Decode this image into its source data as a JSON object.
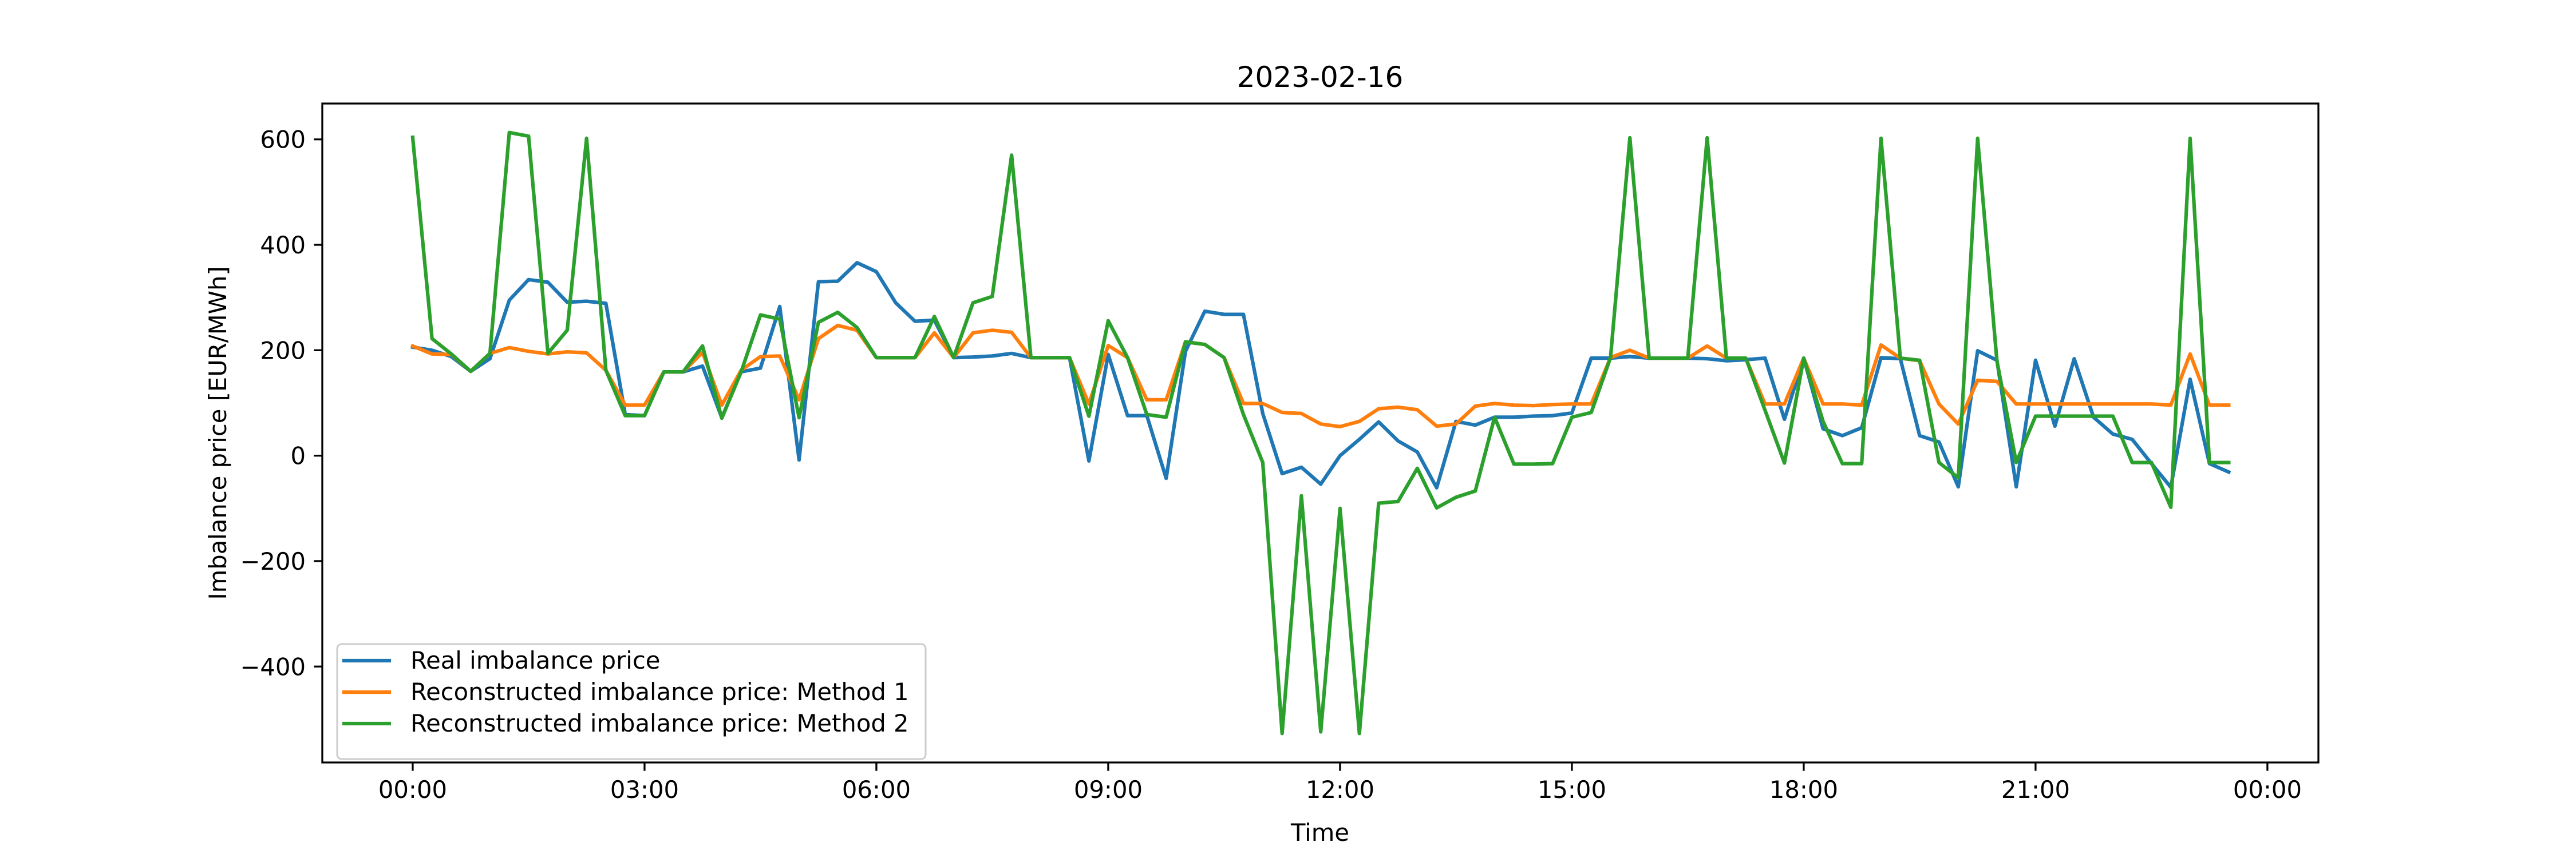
{
  "chart_data": {
    "type": "line",
    "title": "2023-02-16",
    "xlabel": "Time",
    "ylabel": "Imbalance price [EUR/MWh]",
    "x_tick_labels": [
      "00:00",
      "03:00",
      "06:00",
      "09:00",
      "12:00",
      "15:00",
      "18:00",
      "21:00",
      "00:00"
    ],
    "y_ticks": [
      -400,
      -200,
      0,
      200,
      400,
      600
    ],
    "x_resolution_minutes": 15,
    "x_start": "00:00",
    "x_end": "23:30",
    "ylim": [
      -582,
      668
    ],
    "xlim_hours": [
      -1.17,
      24.66
    ],
    "grid": false,
    "legend_position": "lower-left",
    "series": [
      {
        "name": "Real imbalance price",
        "color": "#1f77b4",
        "values": [
          206,
          200,
          188,
          160,
          184,
          295,
          334,
          329,
          291,
          293,
          289,
          78,
          76,
          159,
          159,
          170,
          72,
          159,
          166,
          283,
          -8,
          330,
          331,
          366,
          349,
          290,
          255,
          257,
          186,
          187,
          189,
          194,
          186,
          186,
          186,
          -10,
          192,
          76,
          76,
          -43,
          198,
          274,
          268,
          268,
          80,
          -34,
          -22,
          -54,
          0,
          31,
          64,
          28,
          7,
          -61,
          65,
          58,
          73,
          73,
          75,
          76,
          81,
          185,
          185,
          188,
          185,
          185,
          185,
          184,
          180,
          182,
          185,
          69,
          185,
          51,
          38,
          53,
          186,
          184,
          38,
          26,
          -59,
          199,
          181,
          -59,
          181,
          56,
          184,
          73,
          41,
          31,
          -15,
          -60,
          145,
          -15,
          -31
        ]
      },
      {
        "name": "Reconstructed imbalance price: Method 1",
        "color": "#ff7f0e",
        "values": [
          208,
          193,
          192,
          160,
          194,
          205,
          198,
          193,
          197,
          195,
          162,
          96,
          96,
          159,
          159,
          196,
          96,
          162,
          188,
          189,
          106,
          222,
          247,
          238,
          186,
          186,
          186,
          233,
          186,
          233,
          238,
          234,
          186,
          186,
          186,
          98,
          209,
          186,
          106,
          106,
          216,
          211,
          186,
          99,
          99,
          82,
          80,
          60,
          55,
          65,
          89,
          92,
          87,
          56,
          60,
          94,
          99,
          96,
          95,
          97,
          98,
          98,
          186,
          200,
          185,
          185,
          185,
          208,
          185,
          185,
          98,
          98,
          185,
          98,
          98,
          96,
          210,
          185,
          180,
          98,
          60,
          143,
          141,
          98,
          98,
          98,
          98,
          98,
          98,
          98,
          98,
          96,
          193,
          96,
          96
        ]
      },
      {
        "name": "Reconstructed imbalance price: Method 2",
        "color": "#2ca02c",
        "values": [
          604,
          222,
          193,
          160,
          194,
          613,
          606,
          194,
          238,
          602,
          162,
          76,
          76,
          159,
          159,
          208,
          71,
          159,
          267,
          259,
          72,
          253,
          272,
          243,
          186,
          186,
          186,
          264,
          186,
          290,
          302,
          570,
          186,
          186,
          186,
          75,
          256,
          186,
          78,
          73,
          216,
          211,
          186,
          78,
          -13,
          -527,
          -76,
          -524,
          -100,
          -527,
          -90,
          -87,
          -24,
          -99,
          -79,
          -67,
          73,
          -16,
          -16,
          -15,
          73,
          82,
          186,
          603,
          185,
          185,
          185,
          603,
          185,
          185,
          86,
          -14,
          185,
          65,
          -15,
          -15,
          602,
          185,
          181,
          -13,
          -42,
          602,
          180,
          -13,
          75,
          75,
          75,
          75,
          75,
          -13,
          -13,
          -98,
          602,
          -13,
          -13
        ]
      }
    ]
  }
}
